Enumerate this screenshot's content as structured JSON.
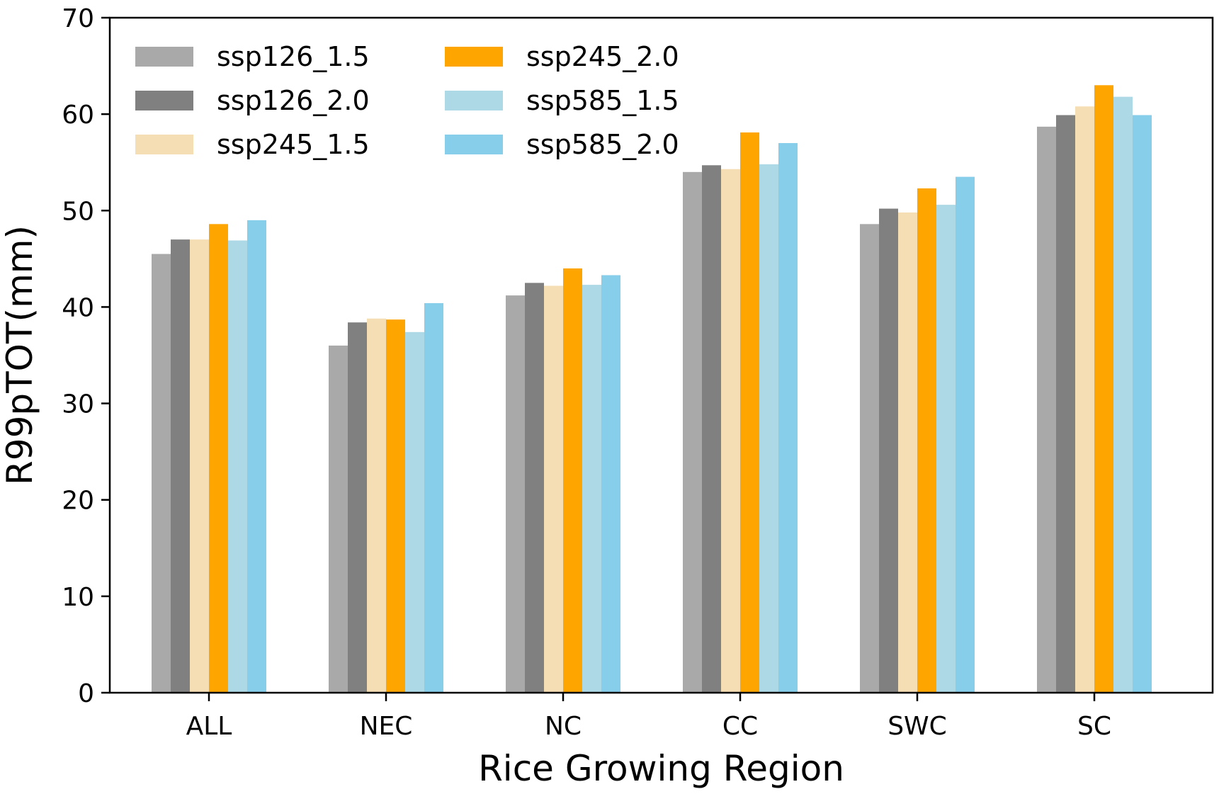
{
  "chart_data": {
    "type": "bar",
    "title": "",
    "xlabel": "Rice Growing Region",
    "ylabel": "R99pTOT(mm)",
    "ylim": [
      0,
      70
    ],
    "yticks": [
      0,
      10,
      20,
      30,
      40,
      50,
      60,
      70
    ],
    "grid": false,
    "legend_position": "top-left",
    "legend_columns": 2,
    "categories": [
      "ALL",
      "NEC",
      "NC",
      "CC",
      "SWC",
      "SC"
    ],
    "series": [
      {
        "name": "ssp126_1.5",
        "color": "#a9a9a9",
        "values": [
          45.5,
          36.0,
          41.2,
          54.0,
          48.6,
          58.7
        ]
      },
      {
        "name": "ssp126_2.0",
        "color": "#808080",
        "values": [
          47.0,
          38.4,
          42.5,
          54.7,
          50.2,
          59.9
        ]
      },
      {
        "name": "ssp245_1.5",
        "color": "#f5deb3",
        "values": [
          47.0,
          38.8,
          42.2,
          54.3,
          49.8,
          60.8
        ]
      },
      {
        "name": "ssp245_2.0",
        "color": "#ffa500",
        "values": [
          48.6,
          38.7,
          44.0,
          58.1,
          52.3,
          63.0
        ]
      },
      {
        "name": "ssp585_1.5",
        "color": "#add8e6",
        "values": [
          46.9,
          37.4,
          42.3,
          54.8,
          50.6,
          61.8
        ]
      },
      {
        "name": "ssp585_2.0",
        "color": "#87ceeb",
        "values": [
          49.0,
          40.4,
          43.3,
          57.0,
          53.5,
          59.9
        ]
      }
    ]
  }
}
